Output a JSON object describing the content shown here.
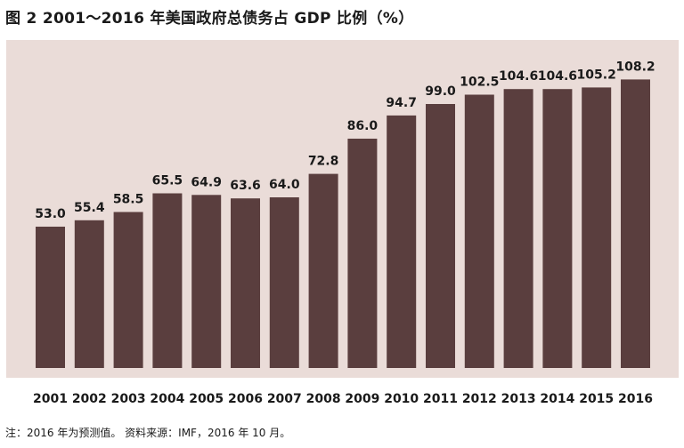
{
  "title": "图 2  2001～2016 年美国政府总债务占 GDP 比例（%）",
  "note": "注：2016 年为预测值。  资料来源：IMF，2016 年 10 月。",
  "colors": {
    "bar": "#5a3e3e",
    "plot_background": "#eadcd8",
    "text": "#1a1a1a"
  },
  "chart_data": {
    "type": "bar",
    "title": "图 2  2001～2016 年美国政府总债务占 GDP 比例（%）",
    "xlabel": "",
    "ylabel": "",
    "categories": [
      "2001",
      "2002",
      "2003",
      "2004",
      "2005",
      "2006",
      "2007",
      "2008",
      "2009",
      "2010",
      "2011",
      "2012",
      "2013",
      "2014",
      "2015",
      "2016"
    ],
    "values": [
      53.0,
      55.4,
      58.5,
      65.5,
      64.9,
      63.6,
      64.0,
      72.8,
      86.0,
      94.7,
      99.0,
      102.5,
      104.6,
      104.6,
      105.2,
      108.2
    ],
    "data_labels": [
      "53.0",
      "55.4",
      "58.5",
      "65.5",
      "64.9",
      "63.6",
      "64.0",
      "72.8",
      "86.0",
      "94.7",
      "99.0",
      "102.5",
      "104.6",
      "104.6",
      "105.2",
      "108.2"
    ],
    "ylim": [
      0,
      110
    ],
    "grid": false,
    "legend": "none"
  }
}
